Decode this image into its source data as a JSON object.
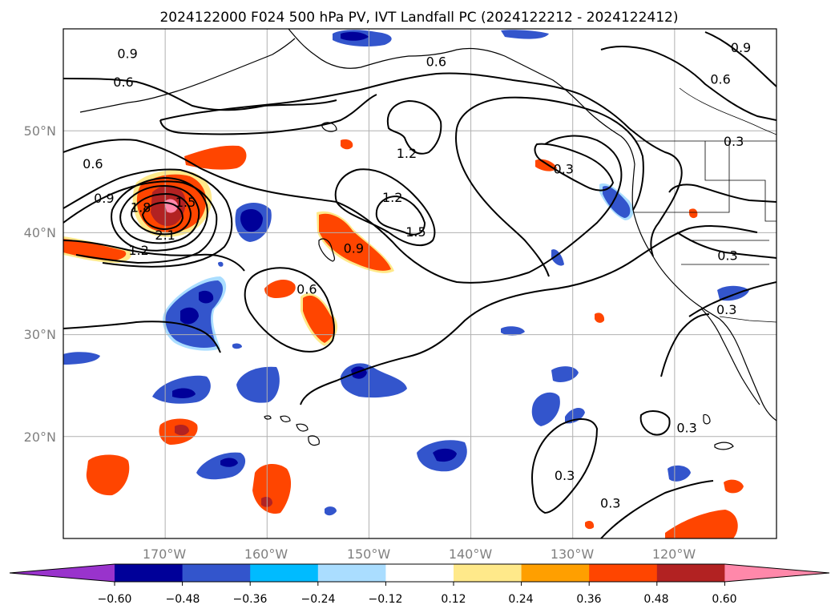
{
  "title": "2024122000 F024 500 hPa PV, IVT Landfall PC (2024122212 - 2024122412)",
  "map": {
    "lon_range": [
      -180,
      -110
    ],
    "lat_range": [
      10,
      60
    ],
    "lon_ticks": [
      -170,
      -160,
      -150,
      -140,
      -130,
      -120
    ],
    "lon_tick_labels": [
      "170°W",
      "160°W",
      "150°W",
      "140°W",
      "130°W",
      "120°W"
    ],
    "lat_ticks": [
      20,
      30,
      40,
      50
    ],
    "lat_tick_labels": [
      "20°N",
      "30°N",
      "40°N",
      "50°N"
    ],
    "grid": true
  },
  "contour_labels": [
    {
      "text": "0.9",
      "lon": -173.7,
      "lat": 57.6
    },
    {
      "text": "0.6",
      "lon": -174.1,
      "lat": 54.8
    },
    {
      "text": "0.6",
      "lon": -143.4,
      "lat": 56.8
    },
    {
      "text": "0.9",
      "lon": -113.5,
      "lat": 58.2
    },
    {
      "text": "0.6",
      "lon": -115.5,
      "lat": 55.1
    },
    {
      "text": "0.3",
      "lon": -114.2,
      "lat": 49.0
    },
    {
      "text": "1.2",
      "lon": -146.3,
      "lat": 47.8
    },
    {
      "text": "0.6",
      "lon": -177.1,
      "lat": 46.8
    },
    {
      "text": "0.9",
      "lon": -176.0,
      "lat": 43.4
    },
    {
      "text": "1.8",
      "lon": -172.4,
      "lat": 42.5
    },
    {
      "text": "1.5",
      "lon": -168.0,
      "lat": 43.0
    },
    {
      "text": "2.1",
      "lon": -170.0,
      "lat": 39.8
    },
    {
      "text": "1.2",
      "lon": -172.6,
      "lat": 38.3
    },
    {
      "text": "1.2",
      "lon": -147.7,
      "lat": 43.5
    },
    {
      "text": "1.5",
      "lon": -145.4,
      "lat": 40.1
    },
    {
      "text": "0.9",
      "lon": -151.5,
      "lat": 38.5
    },
    {
      "text": "0.6",
      "lon": -156.1,
      "lat": 34.5
    },
    {
      "text": "0.3",
      "lon": -130.9,
      "lat": 46.3
    },
    {
      "text": "0.3",
      "lon": -114.8,
      "lat": 37.8
    },
    {
      "text": "0.3",
      "lon": -114.9,
      "lat": 32.5
    },
    {
      "text": "0.3",
      "lon": -118.8,
      "lat": 20.9
    },
    {
      "text": "0.3",
      "lon": -130.8,
      "lat": 16.2
    },
    {
      "text": "0.3",
      "lon": -126.3,
      "lat": 13.5
    }
  ],
  "pv_contour_levels": [
    0.3,
    0.6,
    0.9,
    1.2,
    1.5,
    1.8,
    2.1
  ],
  "colorbar": {
    "colors": [
      "#9933cc",
      "#000099",
      "#3355cc",
      "#00bbff",
      "#aaddff",
      "#ffffff",
      "#ffe98a",
      "#ff9f00",
      "#ff4500",
      "#b22222",
      "#ff88aa"
    ],
    "tick_values": [
      -0.6,
      -0.48,
      -0.36,
      -0.24,
      -0.12,
      0.12,
      0.24,
      0.36,
      0.48,
      0.6
    ],
    "tick_labels": [
      "−0.60",
      "−0.48",
      "−0.36",
      "−0.24",
      "−0.12",
      "0.12",
      "0.24",
      "0.36",
      "0.48",
      "0.60"
    ],
    "extend": "both"
  }
}
